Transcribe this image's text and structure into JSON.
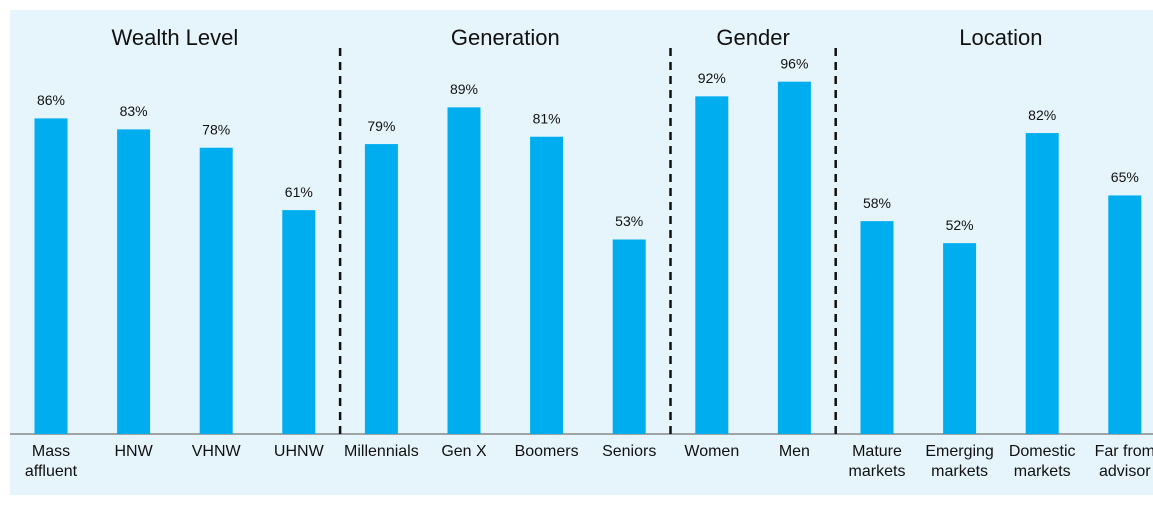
{
  "chart_data": {
    "type": "bar",
    "color": "#00aeef",
    "ylim": [
      0,
      100
    ],
    "groups": [
      {
        "name": "Wealth Level",
        "categories": [
          "Mass\naffluent",
          "HNW",
          "VHNW",
          "UHNW"
        ],
        "values": [
          86,
          83,
          78,
          61
        ],
        "value_labels": [
          "86%",
          "83%",
          "78%",
          "61%"
        ]
      },
      {
        "name": "Generation",
        "categories": [
          "Millennials",
          "Gen X",
          "Boomers",
          "Seniors"
        ],
        "values": [
          79,
          89,
          81,
          53
        ],
        "value_labels": [
          "79%",
          "89%",
          "81%",
          "53%"
        ]
      },
      {
        "name": "Gender",
        "categories": [
          "Women",
          "Men"
        ],
        "values": [
          92,
          96
        ],
        "value_labels": [
          "92%",
          "96%"
        ]
      },
      {
        "name": "Location",
        "categories": [
          "Mature\nmarkets",
          "Emerging\nmarkets",
          "Domestic\nmarkets",
          "Far from\nadvisor"
        ],
        "values": [
          58,
          52,
          82,
          65
        ],
        "value_labels": [
          "58%",
          "52%",
          "82%",
          "65%"
        ]
      }
    ]
  }
}
